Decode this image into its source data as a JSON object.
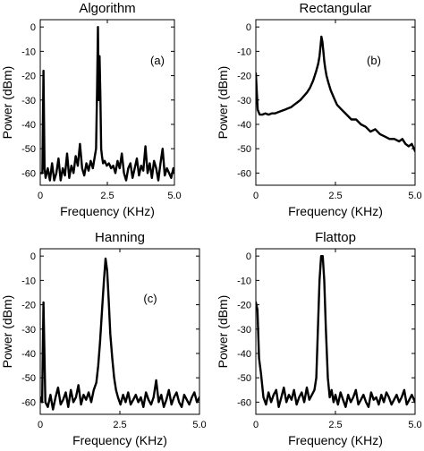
{
  "chart_data": [
    {
      "type": "line",
      "title": "Algorithm",
      "panel_label": "(a)",
      "xlabel": "Frequency (KHz)",
      "ylabel": "Power (dBm)",
      "xlim": [
        0,
        5.0
      ],
      "ylim": [
        -65,
        3
      ],
      "xticks": [
        "0",
        "2.5",
        "5.0"
      ],
      "yticks": [
        "0",
        "-10",
        "-20",
        "-30",
        "-40",
        "-50",
        "-60"
      ],
      "grid": false,
      "series": [
        {
          "x": [
            0.0,
            0.08,
            0.12,
            0.16,
            0.2,
            0.28,
            0.36,
            0.44,
            0.52,
            0.6,
            0.68,
            0.76,
            0.84,
            0.92,
            1.0,
            1.08,
            1.16,
            1.24,
            1.32,
            1.4,
            1.48,
            1.56,
            1.64,
            1.72,
            1.8,
            1.88,
            1.96,
            2.02,
            2.08,
            2.12,
            2.15,
            2.18,
            2.21,
            2.24,
            2.27,
            2.3,
            2.34,
            2.4,
            2.48,
            2.56,
            2.64,
            2.72,
            2.8,
            2.88,
            2.96,
            3.04,
            3.12,
            3.2,
            3.28,
            3.36,
            3.44,
            3.52,
            3.6,
            3.68,
            3.76,
            3.84,
            3.92,
            4.0,
            4.08,
            4.16,
            4.24,
            4.32,
            4.4,
            4.48,
            4.56,
            4.64,
            4.72,
            4.8,
            4.88,
            4.96,
            5.0
          ],
          "y": [
            -60,
            -60,
            -18,
            -58,
            -62,
            -58,
            -63,
            -56,
            -63,
            -60,
            -54,
            -63,
            -58,
            -61,
            -52,
            -62,
            -57,
            -60,
            -53,
            -57,
            -48,
            -58,
            -61,
            -56,
            -59,
            -55,
            -58,
            -54,
            -50,
            -24,
            0,
            -30,
            -12,
            -28,
            -50,
            -53,
            -56,
            -55,
            -57,
            -56,
            -58,
            -57,
            -60,
            -55,
            -58,
            -52,
            -60,
            -63,
            -58,
            -56,
            -62,
            -58,
            -54,
            -61,
            -57,
            -59,
            -49,
            -60,
            -56,
            -62,
            -55,
            -58,
            -63,
            -56,
            -50,
            -61,
            -58,
            -60,
            -62,
            -58,
            -60
          ]
        }
      ]
    },
    {
      "type": "line",
      "title": "Rectangular",
      "panel_label": "(b)",
      "xlabel": "Frequency (KHz)",
      "ylabel": "Power (dBm)",
      "xlim": [
        0,
        5.0
      ],
      "ylim": [
        -65,
        3
      ],
      "xticks": [
        "0",
        "2.5",
        "5.0"
      ],
      "yticks": [
        "0",
        "-10",
        "-20",
        "-30",
        "-40",
        "-50",
        "-60"
      ],
      "grid": false,
      "series": [
        {
          "x": [
            0.0,
            0.06,
            0.12,
            0.2,
            0.3,
            0.4,
            0.5,
            0.6,
            0.7,
            0.8,
            0.9,
            1.0,
            1.1,
            1.2,
            1.3,
            1.4,
            1.5,
            1.6,
            1.7,
            1.8,
            1.9,
            1.96,
            2.0,
            2.03,
            2.06,
            2.09,
            2.12,
            2.15,
            2.18,
            2.22,
            2.28,
            2.35,
            2.45,
            2.55,
            2.7,
            2.85,
            3.0,
            3.15,
            3.3,
            3.45,
            3.6,
            3.75,
            3.9,
            4.05,
            4.2,
            4.35,
            4.5,
            4.6,
            4.7,
            4.8,
            4.9,
            5.0
          ],
          "y": [
            -19,
            -34,
            -36,
            -36,
            -35.5,
            -36,
            -35.5,
            -35.5,
            -35,
            -34.5,
            -34,
            -33.5,
            -33,
            -32,
            -31,
            -30,
            -28.5,
            -27,
            -25,
            -22,
            -18,
            -15,
            -12,
            -8,
            -4,
            -6,
            -10,
            -14,
            -17,
            -20,
            -23,
            -26,
            -29,
            -32,
            -34,
            -36,
            -38,
            -38,
            -40,
            -41,
            -43,
            -42,
            -44,
            -45,
            -46,
            -46,
            -47,
            -46,
            -48,
            -49,
            -48,
            -51
          ]
        }
      ]
    },
    {
      "type": "line",
      "title": "Hanning",
      "panel_label": "(c)",
      "xlabel": "Frequency (KHz)",
      "ylabel": "Power (dBm)",
      "xlim": [
        0,
        5.0
      ],
      "ylim": [
        -65,
        3
      ],
      "xticks": [
        "0",
        "2.5",
        "5.0"
      ],
      "yticks": [
        "0",
        "-10",
        "-20",
        "-30",
        "-40",
        "-50",
        "-60"
      ],
      "grid": false,
      "series": [
        {
          "x": [
            0.0,
            0.06,
            0.1,
            0.16,
            0.24,
            0.32,
            0.4,
            0.48,
            0.56,
            0.64,
            0.72,
            0.8,
            0.88,
            0.96,
            1.04,
            1.12,
            1.2,
            1.28,
            1.36,
            1.44,
            1.52,
            1.6,
            1.68,
            1.76,
            1.82,
            1.88,
            1.94,
            2.0,
            2.05,
            2.1,
            2.15,
            2.2,
            2.26,
            2.32,
            2.38,
            2.44,
            2.52,
            2.6,
            2.68,
            2.76,
            2.84,
            2.92,
            3.0,
            3.08,
            3.16,
            3.24,
            3.32,
            3.4,
            3.48,
            3.56,
            3.64,
            3.72,
            3.8,
            3.88,
            3.96,
            4.04,
            4.12,
            4.2,
            4.28,
            4.36,
            4.44,
            4.52,
            4.6,
            4.68,
            4.76,
            4.84,
            4.92,
            5.0
          ],
          "y": [
            -58,
            -60,
            -19,
            -60,
            -62,
            -57,
            -63,
            -58,
            -54,
            -61,
            -59,
            -56,
            -62,
            -55,
            -60,
            -58,
            -53,
            -61,
            -57,
            -59,
            -56,
            -60,
            -55,
            -52,
            -45,
            -35,
            -22,
            -10,
            -1,
            -6,
            -18,
            -32,
            -42,
            -50,
            -55,
            -58,
            -61,
            -57,
            -60,
            -56,
            -61,
            -59,
            -57,
            -60,
            -58,
            -62,
            -56,
            -59,
            -61,
            -58,
            -51,
            -60,
            -57,
            -62,
            -59,
            -55,
            -61,
            -58,
            -56,
            -60,
            -62,
            -57,
            -59,
            -61,
            -58,
            -56,
            -60,
            -58
          ]
        }
      ]
    },
    {
      "type": "line",
      "title": "Flattop",
      "panel_label": "",
      "xlabel": "Frequency (KHz)",
      "ylabel": "Power (dBm)",
      "xlim": [
        0,
        5.0
      ],
      "ylim": [
        -65,
        3
      ],
      "xticks": [
        "0",
        "2.5",
        "5.0"
      ],
      "yticks": [
        "0",
        "-10",
        "-20",
        "-30",
        "-40",
        "-50",
        "-60"
      ],
      "grid": false,
      "series": [
        {
          "x": [
            0.0,
            0.05,
            0.1,
            0.16,
            0.24,
            0.32,
            0.4,
            0.48,
            0.56,
            0.64,
            0.72,
            0.8,
            0.88,
            0.96,
            1.04,
            1.12,
            1.2,
            1.28,
            1.36,
            1.44,
            1.52,
            1.6,
            1.68,
            1.76,
            1.84,
            1.9,
            1.95,
            2.0,
            2.05,
            2.1,
            2.15,
            2.2,
            2.26,
            2.32,
            2.38,
            2.44,
            2.5,
            2.58,
            2.66,
            2.74,
            2.82,
            2.9,
            2.98,
            3.06,
            3.14,
            3.22,
            3.3,
            3.38,
            3.46,
            3.54,
            3.62,
            3.7,
            3.78,
            3.86,
            3.94,
            4.02,
            4.1,
            4.18,
            4.26,
            4.34,
            4.42,
            4.5,
            4.58,
            4.66,
            4.74,
            4.82,
            4.9,
            5.0
          ],
          "y": [
            -19,
            -22,
            -42,
            -48,
            -58,
            -61,
            -56,
            -60,
            -57,
            -55,
            -62,
            -58,
            -54,
            -60,
            -57,
            -59,
            -55,
            -61,
            -58,
            -56,
            -60,
            -54,
            -59,
            -57,
            -55,
            -50,
            -30,
            -10,
            0,
            0,
            -10,
            -30,
            -50,
            -58,
            -55,
            -60,
            -57,
            -61,
            -56,
            -59,
            -62,
            -57,
            -60,
            -58,
            -55,
            -61,
            -59,
            -57,
            -60,
            -62,
            -56,
            -59,
            -58,
            -61,
            -57,
            -60,
            -56,
            -58,
            -61,
            -59,
            -57,
            -60,
            -58,
            -55,
            -61,
            -59,
            -57,
            -60
          ]
        }
      ]
    }
  ]
}
